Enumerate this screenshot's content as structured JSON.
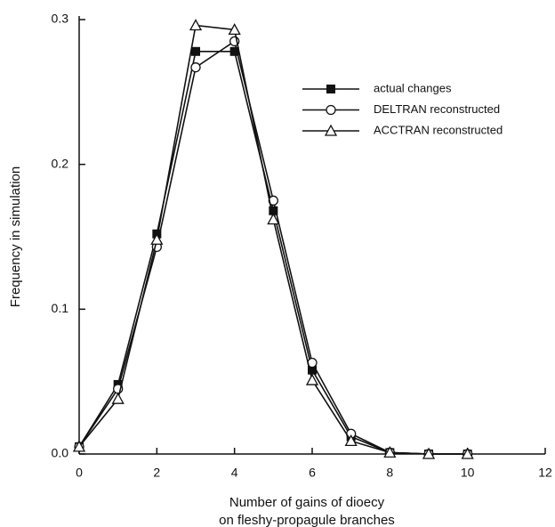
{
  "chart_data": {
    "type": "line",
    "xlabel": [
      "Number of gains of dioecy",
      "on fleshy-propagule branches"
    ],
    "ylabel": "Frequency in simulation",
    "x": [
      0,
      1,
      2,
      3,
      4,
      5,
      6,
      7,
      8,
      9,
      10
    ],
    "series": [
      {
        "name": "actual changes",
        "color": "#111111",
        "marker": "square",
        "values": [
          0.005,
          0.048,
          0.152,
          0.278,
          0.278,
          0.168,
          0.058,
          0.012,
          0.001,
          0,
          0
        ]
      },
      {
        "name": "DELTRAN reconstructed",
        "color": "#111111",
        "marker": "circle",
        "values": [
          0.005,
          0.045,
          0.143,
          0.267,
          0.285,
          0.175,
          0.063,
          0.014,
          0.001,
          0,
          0
        ]
      },
      {
        "name": "ACCTRAN reconstructed",
        "color": "#111111",
        "marker": "triangle",
        "values": [
          0.005,
          0.038,
          0.148,
          0.296,
          0.293,
          0.162,
          0.051,
          0.009,
          0.001,
          0,
          0
        ]
      }
    ],
    "xlim": [
      0,
      12
    ],
    "xticks": [
      0,
      2,
      4,
      6,
      8,
      10,
      12
    ],
    "ylim": [
      0,
      0.3
    ],
    "yticks": [
      {
        "value": 0,
        "label": "0.0"
      },
      0.1,
      0.2,
      0.3
    ],
    "grid": false,
    "legend": "upper-right"
  }
}
